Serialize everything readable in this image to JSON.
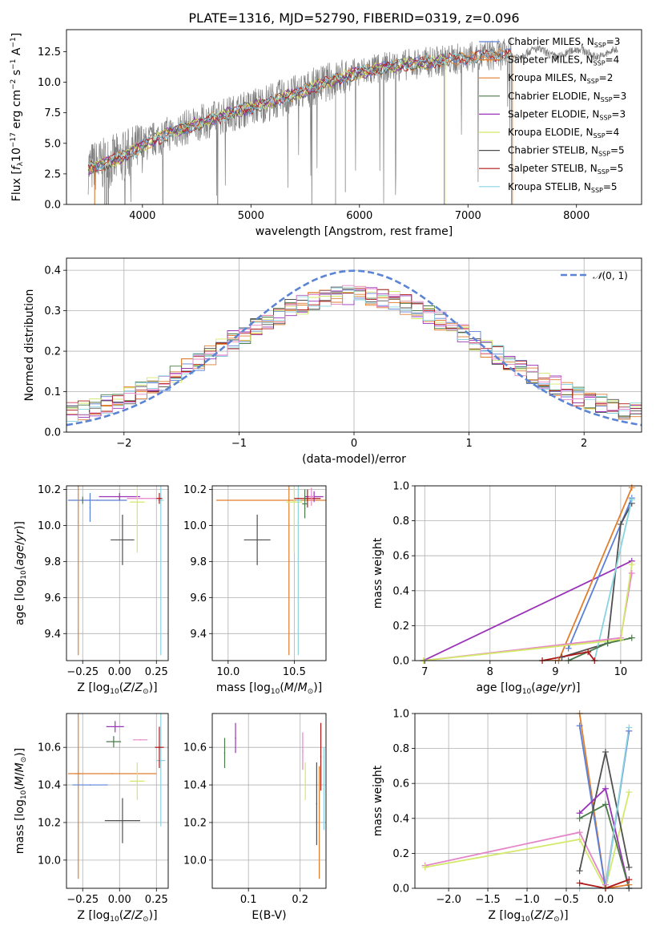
{
  "colors": {
    "chabrier_miles": "#5b7fd8",
    "salpeter_miles": "#e07e2e",
    "kroupa_miles": "#e07e2e",
    "chabrier_elodie": "#4a7a4a",
    "salpeter_elodie": "#9a33b8",
    "kroupa_elodie": "#d4e86a",
    "chabrier_stelib": "#505050",
    "salpeter_stelib": "#b01818",
    "kroupa_stelib": "#88d4e0",
    "pink": "#e586c8",
    "normal_curve": "#5b84d4",
    "data_spectrum": "#808080"
  },
  "chart_data": [
    {
      "id": "spectrum",
      "type": "line",
      "title": "PLATE=1316, MJD=52790, FIBERID=0319, z=0.096",
      "xlabel": "wavelength [Angstrom, rest frame]",
      "ylabel": "Flux [f_λ 10^-17 erg cm^-2 s^-1 A^-1]",
      "xlim": [
        3300,
        8600
      ],
      "ylim": [
        0,
        14.3
      ],
      "xticks": [
        "4000",
        "5000",
        "6000",
        "7000",
        "8000"
      ],
      "yticks": [
        "0.0",
        "2.5",
        "5.0",
        "7.5",
        "10.0",
        "12.5"
      ],
      "legend_position": "right",
      "legend": [
        "Chabrier MILES, N_SSP=3",
        "Salpeter MILES, N_SSP=4",
        "Kroupa MILES, N_SSP=2",
        "Chabrier ELODIE, N_SSP=3",
        "Salpeter ELODIE, N_SSP=3",
        "Kroupa ELODIE, N_SSP=4",
        "Chabrier STELIB, N_SSP=5",
        "Salpeter STELIB, N_SSP=5",
        "Kroupa STELIB, N_SSP=5"
      ],
      "model_continuum": {
        "x": [
          3500,
          3650,
          3800,
          3950,
          4100,
          4300,
          4500,
          4800,
          5100,
          5400,
          5700,
          6000,
          6300,
          6600,
          6900,
          7200,
          7400
        ],
        "y": [
          3.0,
          3.3,
          3.8,
          4.5,
          5.3,
          6.0,
          6.6,
          7.4,
          8.2,
          9.0,
          10.0,
          10.8,
          11.3,
          11.6,
          11.9,
          12.2,
          12.3
        ]
      }
    },
    {
      "id": "residuals",
      "type": "line",
      "xlabel": "(data-model)/error",
      "ylabel": "Normed distribution",
      "xlim": [
        -2.5,
        2.5
      ],
      "ylim": [
        0,
        0.43
      ],
      "xticks": [
        "−2",
        "−1",
        "0",
        "1",
        "2"
      ],
      "yticks": [
        "0.0",
        "0.1",
        "0.2",
        "0.3",
        "0.4"
      ],
      "grid": true,
      "legend": [
        "N(0,1)"
      ],
      "legend_position": "top-right",
      "series": [
        {
          "name": "N(0,1)",
          "style": "dashed",
          "function": "standard normal pdf"
        }
      ]
    },
    {
      "id": "age_vs_Z",
      "type": "scatter",
      "xlabel": "Z [log10(Z/Z⊙)]",
      "ylabel": "age [log10(age/yr)]",
      "xlim": [
        -0.36,
        0.33
      ],
      "ylim": [
        9.25,
        10.22
      ],
      "xticks": [
        "−0.25",
        "0.00",
        "0.25"
      ],
      "yticks": [
        "9.4",
        "9.6",
        "9.8",
        "10.0",
        "10.2"
      ],
      "grid": true,
      "points": [
        {
          "x": 0.02,
          "y": 9.92,
          "xerr": 0.08,
          "yerr": 0.14,
          "c": "chabrier_stelib"
        },
        {
          "x": -0.15,
          "y": 10.14,
          "xerr": 0.2,
          "yerr": 0.0,
          "c": "chabrier_miles"
        },
        {
          "x": -0.28,
          "y": 10.14,
          "xerr": 0.0,
          "yerr": 0.86,
          "c": "salpeter_miles"
        },
        {
          "x": 0.0,
          "y": 10.16,
          "xerr": 0.14,
          "yerr": 0.02,
          "c": "salpeter_elodie"
        },
        {
          "x": 0.15,
          "y": 10.15,
          "xerr": 0.1,
          "yerr": 0.0,
          "c": "pink"
        },
        {
          "x": 0.12,
          "y": 10.13,
          "xerr": 0.05,
          "yerr": 0.28,
          "c": "kroupa_elodie"
        },
        {
          "x": 0.28,
          "y": 10.14,
          "xerr": 0.02,
          "yerr": 0.86,
          "c": "kroupa_stelib"
        },
        {
          "x": 0.27,
          "y": 10.15,
          "xerr": 0.02,
          "yerr": 0.03,
          "c": "salpeter_stelib"
        },
        {
          "x": -0.2,
          "y": 10.1,
          "xerr": 0.0,
          "yerr": 0.08,
          "c": "chabrier_miles"
        },
        {
          "x": -0.25,
          "y": 10.14,
          "xerr": 0.0,
          "yerr": 0.02,
          "c": "chabrier_elodie"
        }
      ]
    },
    {
      "id": "age_vs_mass",
      "type": "scatter",
      "xlabel": "mass [log10(M/M⊙)]",
      "ylabel": "",
      "xlim": [
        9.88,
        10.74
      ],
      "ylim": [
        9.25,
        10.22
      ],
      "xticks": [
        "10.0",
        "10.5"
      ],
      "yticks": [
        "9.4",
        "9.6",
        "9.8",
        "10.0",
        "10.2"
      ],
      "grid": true,
      "points": [
        {
          "x": 10.22,
          "y": 9.92,
          "xerr": 0.1,
          "yerr": 0.14,
          "c": "chabrier_stelib"
        },
        {
          "x": 10.46,
          "y": 10.14,
          "xerr": 0.55,
          "yerr": 0.86,
          "c": "salpeter_miles"
        },
        {
          "x": 10.65,
          "y": 10.16,
          "xerr": 0.07,
          "yerr": 0.03,
          "c": "salpeter_elodie"
        },
        {
          "x": 10.5,
          "y": 10.13,
          "xerr": 0.06,
          "yerr": 0.28,
          "c": "kroupa_elodie"
        },
        {
          "x": 10.53,
          "y": 10.14,
          "xerr": 0.02,
          "yerr": 0.86,
          "c": "kroupa_stelib"
        },
        {
          "x": 10.6,
          "y": 10.15,
          "xerr": 0.1,
          "yerr": 0.05,
          "c": "salpeter_stelib"
        },
        {
          "x": 10.63,
          "y": 10.16,
          "xerr": 0.02,
          "yerr": 0.05,
          "c": "pink"
        },
        {
          "x": 10.58,
          "y": 10.12,
          "xerr": 0.02,
          "yerr": 0.08,
          "c": "chabrier_elodie"
        }
      ]
    },
    {
      "id": "weight_vs_age",
      "type": "line",
      "xlabel": "age [log10(age/yr)]",
      "ylabel": "mass weight",
      "xlim": [
        6.85,
        10.32
      ],
      "ylim": [
        0,
        1.0
      ],
      "xticks": [
        "7",
        "8",
        "9",
        "10"
      ],
      "yticks": [
        "0.0",
        "0.2",
        "0.4",
        "0.6",
        "0.8",
        "1.0"
      ],
      "grid": true,
      "series": [
        {
          "c": "salpeter_elodie",
          "x": [
            6.98,
            10.17
          ],
          "y": [
            0.0,
            0.57
          ]
        },
        {
          "c": "salpeter_miles",
          "x": [
            8.8,
            9.05,
            10.17
          ],
          "y": [
            0.0,
            0.0,
            0.99
          ]
        },
        {
          "c": "chabrier_miles",
          "x": [
            9.2,
            10.17
          ],
          "y": [
            0.07,
            0.93
          ]
        },
        {
          "c": "chabrier_stelib",
          "x": [
            9.1,
            9.8,
            10.0,
            10.17
          ],
          "y": [
            0.02,
            0.1,
            0.78,
            0.9
          ]
        },
        {
          "c": "kroupa_stelib",
          "x": [
            9.6,
            10.17
          ],
          "y": [
            0.0,
            0.92
          ]
        },
        {
          "c": "pink",
          "x": [
            6.98,
            10.0,
            10.17
          ],
          "y": [
            0.0,
            0.13,
            0.5
          ]
        },
        {
          "c": "kroupa_elodie",
          "x": [
            6.98,
            10.0,
            10.17
          ],
          "y": [
            0.0,
            0.12,
            0.55
          ]
        },
        {
          "c": "chabrier_elodie",
          "x": [
            9.2,
            9.8,
            10.17
          ],
          "y": [
            0.0,
            0.1,
            0.13
          ]
        },
        {
          "c": "salpeter_stelib",
          "x": [
            8.8,
            9.5,
            9.6
          ],
          "y": [
            0.0,
            0.05,
            0.0
          ]
        }
      ]
    },
    {
      "id": "mass_vs_Z",
      "type": "scatter",
      "xlabel": "Z [log10(Z/Z⊙)]",
      "ylabel": "mass [log10(M/M⊙)]",
      "xlim": [
        -0.36,
        0.33
      ],
      "ylim": [
        9.85,
        10.78
      ],
      "xticks": [
        "−0.25",
        "0.00",
        "0.25"
      ],
      "yticks": [
        "10.0",
        "10.2",
        "10.4",
        "10.6"
      ],
      "grid": true,
      "points": [
        {
          "x": 0.02,
          "y": 10.21,
          "xerr": 0.12,
          "yerr": 0.12,
          "c": "chabrier_stelib"
        },
        {
          "x": -0.28,
          "y": 10.46,
          "xerr": 0.02,
          "yerr": 0.56,
          "c": "salpeter_miles"
        },
        {
          "x": -0.05,
          "y": 10.46,
          "xerr": 0.3,
          "yerr": 0.0,
          "c": "salpeter_miles"
        },
        {
          "x": -0.2,
          "y": 10.4,
          "xerr": 0.12,
          "yerr": 0.0,
          "c": "chabrier_miles"
        },
        {
          "x": -0.03,
          "y": 10.71,
          "xerr": 0.06,
          "yerr": 0.03,
          "c": "salpeter_elodie"
        },
        {
          "x": 0.14,
          "y": 10.64,
          "xerr": 0.05,
          "yerr": 0.0,
          "c": "pink"
        },
        {
          "x": 0.12,
          "y": 10.42,
          "xerr": 0.05,
          "yerr": 0.1,
          "c": "kroupa_elodie"
        },
        {
          "x": 0.28,
          "y": 10.53,
          "xerr": 0.03,
          "yerr": 0.35,
          "c": "kroupa_stelib"
        },
        {
          "x": 0.27,
          "y": 10.6,
          "xerr": 0.03,
          "yerr": 0.11,
          "c": "salpeter_stelib"
        },
        {
          "x": -0.04,
          "y": 10.63,
          "xerr": 0.05,
          "yerr": 0.03,
          "c": "chabrier_elodie"
        }
      ]
    },
    {
      "id": "mass_vs_ebv",
      "type": "scatter",
      "xlabel": "E(B-V)",
      "ylabel": "",
      "xlim": [
        0.03,
        0.25
      ],
      "ylim": [
        9.85,
        10.78
      ],
      "xticks": [
        "0.1",
        "0.2"
      ],
      "yticks": [
        "10.0",
        "10.2",
        "10.4",
        "10.6"
      ],
      "grid": true,
      "points": [
        {
          "x": 0.054,
          "y": 10.57,
          "xerr": 0.0,
          "yerr": 0.08,
          "c": "chabrier_elodie"
        },
        {
          "x": 0.075,
          "y": 10.65,
          "xerr": 0.0,
          "yerr": 0.08,
          "c": "salpeter_elodie"
        },
        {
          "x": 0.205,
          "y": 10.58,
          "xerr": 0.0,
          "yerr": 0.1,
          "c": "pink"
        },
        {
          "x": 0.21,
          "y": 10.42,
          "xerr": 0.0,
          "yerr": 0.1,
          "c": "kroupa_elodie"
        },
        {
          "x": 0.232,
          "y": 10.3,
          "xerr": 0.0,
          "yerr": 0.22,
          "c": "chabrier_stelib"
        },
        {
          "x": 0.237,
          "y": 10.2,
          "xerr": 0.0,
          "yerr": 0.3,
          "c": "salpeter_miles"
        },
        {
          "x": 0.24,
          "y": 10.55,
          "xerr": 0.0,
          "yerr": 0.18,
          "c": "salpeter_stelib"
        },
        {
          "x": 0.246,
          "y": 10.38,
          "xerr": 0.0,
          "yerr": 0.22,
          "c": "kroupa_stelib"
        }
      ]
    },
    {
      "id": "weight_vs_Z",
      "type": "line",
      "xlabel": "Z [log10(Z/Z⊙)]",
      "ylabel": "mass weight",
      "xlim": [
        -2.43,
        0.46
      ],
      "ylim": [
        0,
        1.0
      ],
      "xticks": [
        "−2.0",
        "−1.5",
        "−1.0",
        "−0.5",
        "0.0"
      ],
      "yticks": [
        "0.0",
        "0.2",
        "0.4",
        "0.6",
        "0.8",
        "1.0"
      ],
      "grid": true,
      "series": [
        {
          "c": "pink",
          "x": [
            -2.3,
            -0.33,
            0.0,
            0.3
          ],
          "y": [
            0.13,
            0.32,
            0.02,
            0.9
          ]
        },
        {
          "c": "kroupa_elodie",
          "x": [
            -2.3,
            -0.33,
            0.0,
            0.3
          ],
          "y": [
            0.12,
            0.28,
            0.0,
            0.55
          ]
        },
        {
          "c": "salpeter_miles",
          "x": [
            -0.33,
            0.0,
            0.3
          ],
          "y": [
            1.0,
            0.0,
            0.02
          ]
        },
        {
          "c": "chabrier_miles",
          "x": [
            -0.33,
            0.0,
            0.3
          ],
          "y": [
            0.93,
            0.0,
            0.9
          ]
        },
        {
          "c": "chabrier_stelib",
          "x": [
            -0.33,
            0.0,
            0.3
          ],
          "y": [
            0.1,
            0.78,
            0.12
          ]
        },
        {
          "c": "salpeter_elodie",
          "x": [
            -0.33,
            0.0,
            0.3
          ],
          "y": [
            0.43,
            0.57,
            0.0
          ]
        },
        {
          "c": "chabrier_elodie",
          "x": [
            -0.33,
            0.0,
            0.3
          ],
          "y": [
            0.4,
            0.48,
            0.0
          ]
        },
        {
          "c": "kroupa_stelib",
          "x": [
            -0.33,
            0.0,
            0.3
          ],
          "y": [
            0.0,
            0.0,
            0.92
          ]
        },
        {
          "c": "salpeter_stelib",
          "x": [
            -0.33,
            0.0,
            0.3
          ],
          "y": [
            0.03,
            0.0,
            0.05
          ]
        }
      ]
    }
  ]
}
